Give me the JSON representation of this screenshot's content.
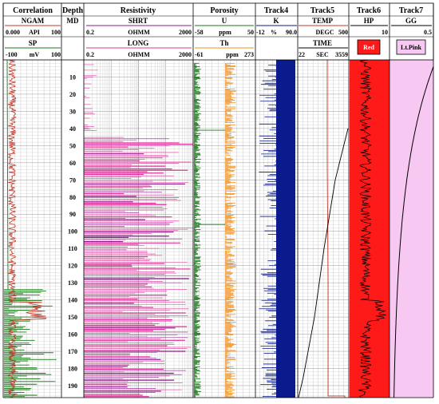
{
  "tracks": [
    {
      "title": "Correlation",
      "curves": [
        {
          "name": "NGAM",
          "left": "0.000",
          "unit": "API",
          "right": "100",
          "color": "#c0392b"
        },
        {
          "name": "SP",
          "left": "-100",
          "unit": "mV",
          "right": "100",
          "color": "#1a7a1a"
        }
      ]
    },
    {
      "title": "Depth",
      "curves": [
        {
          "name": "MD"
        }
      ]
    },
    {
      "title": "Resistivity",
      "curves": [
        {
          "name": "SHRT",
          "left": "0.2",
          "unit": "OHMM",
          "right": "2000",
          "color": "#8b1a8b"
        },
        {
          "name": "LONG",
          "left": "0.2",
          "unit": "OHMM",
          "right": "2000",
          "color": "#e0339a"
        }
      ]
    },
    {
      "title": "Porosity",
      "curves": [
        {
          "name": "U",
          "left": "-58",
          "unit": "ppm",
          "right": "50",
          "color": "#1a7a1a"
        },
        {
          "name": "Th",
          "left": "-61",
          "unit": "ppm",
          "right": "273",
          "color": "#f0901e"
        }
      ]
    },
    {
      "title": "Track4",
      "curves": [
        {
          "name": "K",
          "left": "-12",
          "unit": "%",
          "right": "90.0",
          "color": "#0b1a8c"
        }
      ]
    },
    {
      "title": "Track5",
      "curves": [
        {
          "name": "TEMP",
          "left": "",
          "unit": "DEGC",
          "right": "500",
          "color": "#c0392b"
        },
        {
          "name": "TIME",
          "left": "22",
          "unit": "SEC",
          "right": "3559",
          "color": "#000000"
        }
      ]
    },
    {
      "title": "Track6",
      "curves": [
        {
          "name": "HP",
          "left": "",
          "unit": "",
          "right": "10",
          "color": "#000000"
        }
      ],
      "fill_label": "Red",
      "fill_color": "#ff1a1a"
    },
    {
      "title": "Track7",
      "curves": [
        {
          "name": "GG",
          "left": "",
          "unit": "",
          "right": "0.5",
          "color": "#000000"
        }
      ],
      "fill_label": "Lt.Pink",
      "fill_color": "#f7c8f2"
    }
  ],
  "depth_labels": [
    "10",
    "20",
    "30",
    "40",
    "50",
    "60",
    "70",
    "80",
    "90",
    "100",
    "110",
    "120",
    "130",
    "140",
    "150",
    "160",
    "170",
    "180",
    "190"
  ],
  "chart_data": {
    "type": "well-log",
    "depth_range": [
      0,
      197
    ],
    "depth_unit": "MD",
    "curves": [
      {
        "name": "NGAM",
        "unit": "API",
        "scale": [
          0,
          100
        ],
        "description": "gamma ray, low (~8-15 API) with broad high zone ~141-151"
      },
      {
        "name": "SP",
        "unit": "mV",
        "scale": [
          -100,
          100
        ],
        "description": "flat near -90 mV above 135, then deflects right below"
      },
      {
        "name": "SHRT",
        "unit": "OHMM",
        "scale": [
          0.2,
          2000
        ],
        "log_scale": true
      },
      {
        "name": "LONG",
        "unit": "OHMM",
        "scale": [
          0.2,
          2000
        ],
        "log_scale": true
      },
      {
        "name": "U",
        "unit": "ppm",
        "scale": [
          -58,
          50
        ]
      },
      {
        "name": "Th",
        "unit": "ppm",
        "scale": [
          -61,
          273
        ]
      },
      {
        "name": "K",
        "unit": "%",
        "scale": [
          -12,
          90.0
        ]
      },
      {
        "name": "TEMP",
        "unit": "DEGC",
        "scale": [
          0,
          500
        ]
      },
      {
        "name": "TIME",
        "unit": "SEC",
        "scale": [
          22,
          3559
        ]
      },
      {
        "name": "HP",
        "scale": [
          0,
          10
        ]
      },
      {
        "name": "GG",
        "scale": [
          0,
          0.5
        ]
      }
    ]
  }
}
